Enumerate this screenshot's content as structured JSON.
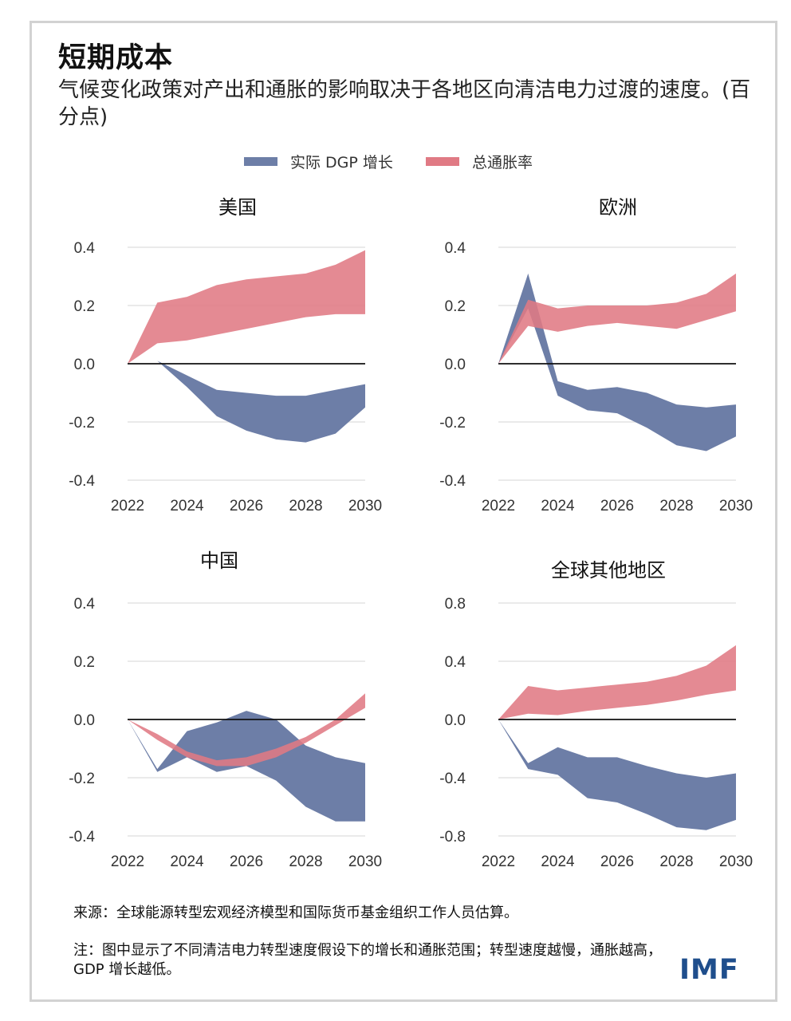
{
  "title": "短期成本",
  "subtitle": "气候变化政策对产出和通胀的影响取决于各地区向清洁电力过渡的速度。(百分点)",
  "legend": {
    "gdp": {
      "label": "实际 DGP 增长",
      "color": "#6d7ea7"
    },
    "inflation": {
      "label": "总通胀率",
      "color": "#e07a84"
    }
  },
  "source": "来源：全球能源转型宏观经济模型和国际货币基金组织工作人员估算。",
  "footnote": "注：图中显示了不同清洁电力转型速度假设下的增长和通胀范围；转型速度越慢，通胀越高，GDP 增长越低。",
  "logo": "IMF",
  "chart_data": [
    {
      "id": "us",
      "type": "area",
      "title": "美国",
      "x": [
        2022,
        2023,
        2024,
        2025,
        2026,
        2027,
        2028,
        2029,
        2030
      ],
      "xticks": [
        2022,
        2024,
        2026,
        2028,
        2030
      ],
      "ylim": [
        -0.4,
        0.4
      ],
      "yticks": [
        -0.4,
        -0.2,
        0.0,
        0.2,
        0.4
      ],
      "ytick_labels": [
        "-0.4",
        "-0.2",
        "0.0",
        "0.2",
        "0.4"
      ],
      "series": [
        {
          "key": "gdp",
          "upper": [
            0,
            0.01,
            -0.04,
            -0.09,
            -0.1,
            -0.11,
            -0.11,
            -0.09,
            -0.07
          ],
          "lower": [
            0,
            0.01,
            -0.08,
            -0.18,
            -0.23,
            -0.26,
            -0.27,
            -0.24,
            -0.15
          ]
        },
        {
          "key": "inflation",
          "upper": [
            0,
            0.21,
            0.23,
            0.27,
            0.29,
            0.3,
            0.31,
            0.34,
            0.39
          ],
          "lower": [
            0,
            0.07,
            0.08,
            0.1,
            0.12,
            0.14,
            0.16,
            0.17,
            0.17
          ]
        }
      ]
    },
    {
      "id": "europe",
      "type": "area",
      "title": "欧洲",
      "x": [
        2022,
        2023,
        2024,
        2025,
        2026,
        2027,
        2028,
        2029,
        2030
      ],
      "xticks": [
        2022,
        2024,
        2026,
        2028,
        2030
      ],
      "ylim": [
        -0.4,
        0.4
      ],
      "yticks": [
        -0.4,
        -0.2,
        0.0,
        0.2,
        0.4
      ],
      "ytick_labels": [
        "-0.4",
        "-0.2",
        "0.0",
        "0.2",
        "0.4"
      ],
      "series": [
        {
          "key": "gdp",
          "upper": [
            0,
            0.31,
            -0.06,
            -0.09,
            -0.08,
            -0.1,
            -0.14,
            -0.15,
            -0.14
          ],
          "lower": [
            0,
            0.19,
            -0.11,
            -0.16,
            -0.17,
            -0.22,
            -0.28,
            -0.3,
            -0.25
          ]
        },
        {
          "key": "inflation",
          "upper": [
            0,
            0.22,
            0.19,
            0.2,
            0.2,
            0.2,
            0.21,
            0.24,
            0.31
          ],
          "lower": [
            0,
            0.13,
            0.11,
            0.13,
            0.14,
            0.13,
            0.12,
            0.15,
            0.18
          ]
        }
      ]
    },
    {
      "id": "china",
      "type": "area",
      "title": "中国",
      "x": [
        2022,
        2023,
        2024,
        2025,
        2026,
        2027,
        2028,
        2029,
        2030
      ],
      "xticks": [
        2022,
        2024,
        2026,
        2028,
        2030
      ],
      "ylim": [
        -0.4,
        0.4
      ],
      "yticks": [
        -0.4,
        -0.2,
        0.0,
        0.2,
        0.4
      ],
      "ytick_labels": [
        "-0.4",
        "-0.2",
        "0.0",
        "0.2",
        "0.4"
      ],
      "series": [
        {
          "key": "gdp",
          "upper": [
            0,
            -0.17,
            -0.04,
            -0.01,
            0.03,
            0.0,
            -0.09,
            -0.13,
            -0.15
          ],
          "lower": [
            0,
            -0.18,
            -0.13,
            -0.18,
            -0.16,
            -0.21,
            -0.3,
            -0.35,
            -0.35
          ]
        },
        {
          "key": "inflation",
          "upper": [
            0,
            -0.05,
            -0.11,
            -0.14,
            -0.13,
            -0.1,
            -0.06,
            0.0,
            0.09
          ],
          "lower": [
            0,
            -0.07,
            -0.13,
            -0.16,
            -0.16,
            -0.13,
            -0.08,
            -0.02,
            0.04
          ]
        }
      ]
    },
    {
      "id": "rest-of-world",
      "type": "area",
      "title": "全球其他地区",
      "x": [
        2022,
        2023,
        2024,
        2025,
        2026,
        2027,
        2028,
        2029,
        2030
      ],
      "xticks": [
        2022,
        2024,
        2026,
        2028,
        2030
      ],
      "ylim": [
        -0.8,
        0.8
      ],
      "yticks": [
        -0.8,
        -0.4,
        0.0,
        0.4,
        0.8
      ],
      "ytick_labels": [
        "-0.8",
        "-0.4",
        "0.0",
        "0.4",
        "0.8"
      ],
      "series": [
        {
          "key": "gdp",
          "upper": [
            0,
            -0.3,
            -0.19,
            -0.26,
            -0.26,
            -0.32,
            -0.37,
            -0.4,
            -0.37
          ],
          "lower": [
            0,
            -0.34,
            -0.38,
            -0.54,
            -0.57,
            -0.65,
            -0.74,
            -0.76,
            -0.69
          ]
        },
        {
          "key": "inflation",
          "upper": [
            0,
            0.23,
            0.2,
            0.22,
            0.24,
            0.26,
            0.3,
            0.37,
            0.51
          ],
          "lower": [
            0,
            0.04,
            0.03,
            0.06,
            0.08,
            0.1,
            0.13,
            0.17,
            0.2
          ]
        }
      ]
    }
  ]
}
